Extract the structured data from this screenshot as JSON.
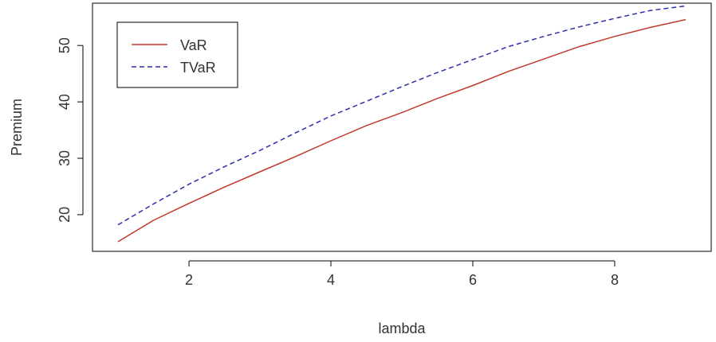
{
  "chart_data": {
    "type": "line",
    "title": "",
    "xlabel": "lambda",
    "ylabel": "Premium",
    "xlim": [
      0.64,
      9.36
    ],
    "ylim": [
      13.5,
      57.5
    ],
    "xticks": [
      2,
      4,
      6,
      8
    ],
    "yticks": [
      20,
      30,
      40,
      50
    ],
    "xtick_labels": [
      "2",
      "4",
      "6",
      "8"
    ],
    "ytick_labels": [
      "20",
      "30",
      "40",
      "50"
    ],
    "grid": false,
    "legend_position": "top-left",
    "series": [
      {
        "name": "VaR",
        "color": "#c0392b",
        "line_style": "solid",
        "x": [
          1,
          1.5,
          2,
          2.5,
          3,
          3.5,
          4,
          4.5,
          5,
          5.5,
          6,
          6.5,
          7,
          7.5,
          8,
          8.5,
          9
        ],
        "y": [
          15.2,
          19.0,
          22.0,
          24.9,
          27.6,
          30.3,
          33.1,
          35.8,
          38.1,
          40.6,
          42.9,
          45.4,
          47.6,
          49.8,
          51.6,
          53.2,
          54.6
        ]
      },
      {
        "name": "TVaR",
        "color": "#2e2ea8",
        "line_style": "dashed",
        "x": [
          1,
          1.5,
          2,
          2.5,
          3,
          3.5,
          4,
          4.5,
          5,
          5.5,
          6,
          6.5,
          7,
          7.5,
          8,
          8.5,
          9
        ],
        "y": [
          18.2,
          21.9,
          25.4,
          28.5,
          31.4,
          34.5,
          37.5,
          40.1,
          42.7,
          45.2,
          47.5,
          49.8,
          51.6,
          53.3,
          54.8,
          56.2,
          57.0
        ]
      }
    ]
  }
}
